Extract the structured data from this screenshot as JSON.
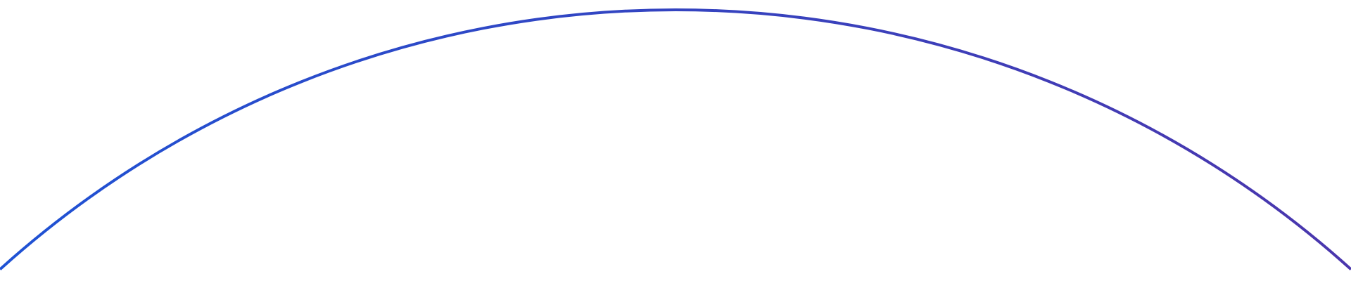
{
  "arc": {
    "color_start": "#1f52d4",
    "color_end": "#4a36ad"
  }
}
